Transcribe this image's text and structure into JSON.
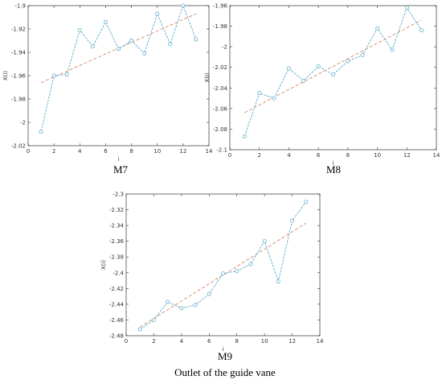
{
  "figure_caption": "Outlet of the guide vane",
  "colors": {
    "series": "#6fb6d0",
    "trend": "#d9926f",
    "axes": "#333333"
  },
  "chart_data": [
    {
      "type": "line",
      "caption": "M7",
      "xlabel": "i",
      "ylabel": "X(i)",
      "xlim": [
        0,
        14
      ],
      "ylim": [
        -2.02,
        -1.9
      ],
      "xticks": [
        0,
        2,
        4,
        6,
        8,
        10,
        12,
        14
      ],
      "yticks": [
        -2.02,
        -2.0,
        -1.98,
        -1.96,
        -1.94,
        -1.92,
        -1.9
      ],
      "ytick_labels": [
        "-2.02",
        "-2",
        "-1.98",
        "-1.96",
        "-1.94",
        "-1.92",
        "-1.9"
      ],
      "grid": false,
      "series": [
        {
          "x": [
            1,
            2,
            3,
            4,
            5,
            6,
            7,
            8,
            9,
            10,
            11,
            12,
            13
          ],
          "values": [
            -2.008,
            -1.96,
            -1.959,
            -1.921,
            -1.935,
            -1.914,
            -1.937,
            -1.93,
            -1.941,
            -1.907,
            -1.933,
            -1.9,
            -1.929
          ]
        }
      ],
      "trend": {
        "x": [
          1,
          13
        ],
        "y": [
          -1.966,
          -1.907
        ]
      }
    },
    {
      "type": "line",
      "caption": "M8",
      "xlabel": "i",
      "ylabel": "X(i)",
      "xlim": [
        0,
        14
      ],
      "ylim": [
        -2.1,
        -1.96
      ],
      "xticks": [
        0,
        2,
        4,
        6,
        8,
        10,
        12,
        14
      ],
      "yticks": [
        -2.1,
        -2.08,
        -2.06,
        -2.04,
        -2.02,
        -2.0,
        -1.98,
        -1.96
      ],
      "ytick_labels": [
        "-2.1",
        "-2.08",
        "-2.06",
        "-2.04",
        "-2.02",
        "-2",
        "-1.98",
        "-1.96"
      ],
      "grid": false,
      "series": [
        {
          "x": [
            1,
            2,
            3,
            4,
            5,
            6,
            7,
            8,
            9,
            10,
            11,
            12,
            13
          ],
          "values": [
            -2.087,
            -2.045,
            -2.05,
            -2.021,
            -2.033,
            -2.019,
            -2.027,
            -2.014,
            -2.008,
            -1.982,
            -2.003,
            -1.962,
            -1.984
          ]
        }
      ],
      "trend": {
        "x": [
          1,
          13
        ],
        "y": [
          -2.064,
          -1.974
        ]
      }
    },
    {
      "type": "line",
      "caption": "M9",
      "xlabel": "i",
      "ylabel": "X(i)",
      "xlim": [
        0,
        14
      ],
      "ylim": [
        -2.48,
        -2.3
      ],
      "xticks": [
        0,
        2,
        4,
        6,
        8,
        10,
        12,
        14
      ],
      "yticks": [
        -2.48,
        -2.46,
        -2.44,
        -2.42,
        -2.4,
        -2.38,
        -2.36,
        -2.34,
        -2.32,
        -2.3
      ],
      "ytick_labels": [
        "-2.48",
        "-2.46",
        "-2.44",
        "-2.42",
        "-2.4",
        "-2.38",
        "-2.36",
        "-2.34",
        "-2.32",
        "-2.3"
      ],
      "grid": false,
      "series": [
        {
          "x": [
            1,
            2,
            3,
            4,
            5,
            6,
            7,
            8,
            9,
            10,
            11,
            12,
            13
          ],
          "values": [
            -2.472,
            -2.46,
            -2.437,
            -2.445,
            -2.441,
            -2.427,
            -2.401,
            -2.398,
            -2.389,
            -2.36,
            -2.411,
            -2.334,
            -2.31
          ]
        }
      ],
      "trend": {
        "x": [
          1,
          13
        ],
        "y": [
          -2.469,
          -2.337
        ]
      }
    }
  ]
}
